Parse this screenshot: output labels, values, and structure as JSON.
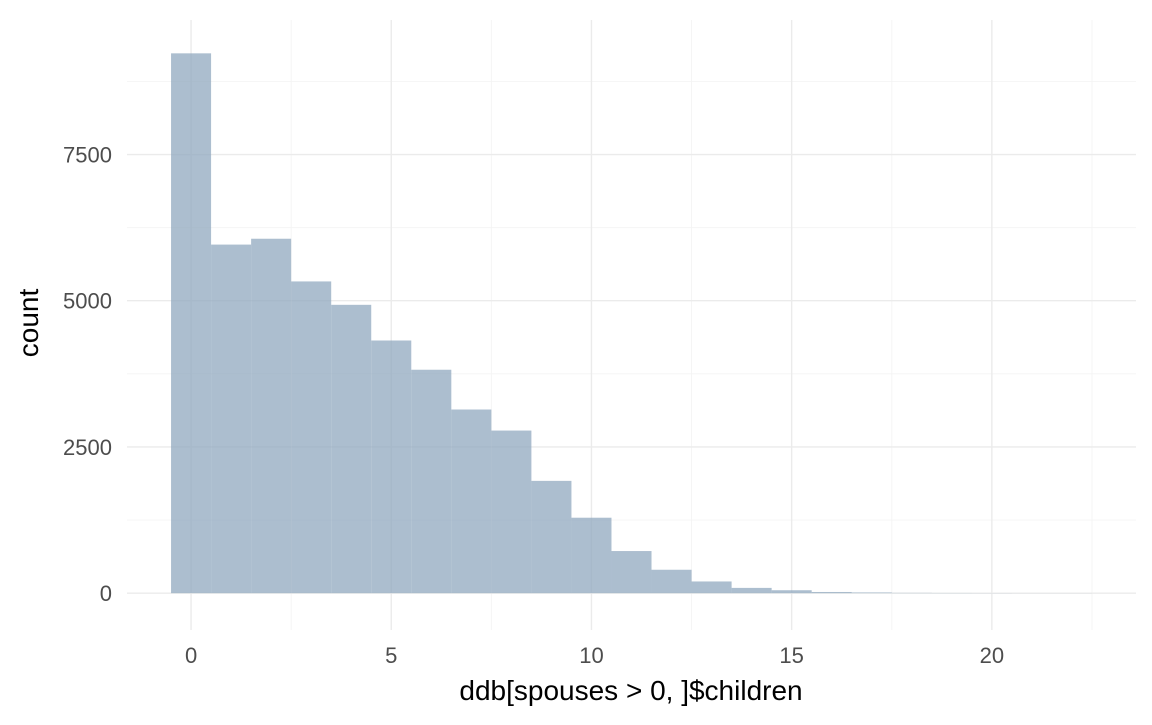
{
  "chart_data": {
    "type": "bar",
    "title": "",
    "xlabel": "ddb[spouses > 0, ]$children",
    "ylabel": "count",
    "xlim": [
      -1.6,
      23.6
    ],
    "ylim": [
      -630,
      9800
    ],
    "x_ticks": [
      0,
      5,
      10,
      15,
      20
    ],
    "x_tick_labels": [
      "0",
      "5",
      "10",
      "15",
      "20"
    ],
    "y_ticks": [
      0,
      2500,
      5000,
      7500
    ],
    "y_tick_labels": [
      "0",
      "2500",
      "5000",
      "7500"
    ],
    "grid": true,
    "legend": "none",
    "bar_color": "#8ca5bd",
    "bins": [
      {
        "x": 0,
        "count": 9230
      },
      {
        "x": 1,
        "count": 5960
      },
      {
        "x": 2,
        "count": 6060
      },
      {
        "x": 3,
        "count": 5330
      },
      {
        "x": 4,
        "count": 4930
      },
      {
        "x": 5,
        "count": 4320
      },
      {
        "x": 6,
        "count": 3820
      },
      {
        "x": 7,
        "count": 3140
      },
      {
        "x": 8,
        "count": 2780
      },
      {
        "x": 9,
        "count": 1920
      },
      {
        "x": 10,
        "count": 1290
      },
      {
        "x": 11,
        "count": 720
      },
      {
        "x": 12,
        "count": 400
      },
      {
        "x": 13,
        "count": 200
      },
      {
        "x": 14,
        "count": 90
      },
      {
        "x": 15,
        "count": 50
      },
      {
        "x": 16,
        "count": 20
      },
      {
        "x": 17,
        "count": 12
      },
      {
        "x": 18,
        "count": 5
      },
      {
        "x": 19,
        "count": 3
      },
      {
        "x": 20,
        "count": 2
      },
      {
        "x": 21,
        "count": 1
      },
      {
        "x": 22,
        "count": 1
      }
    ]
  }
}
